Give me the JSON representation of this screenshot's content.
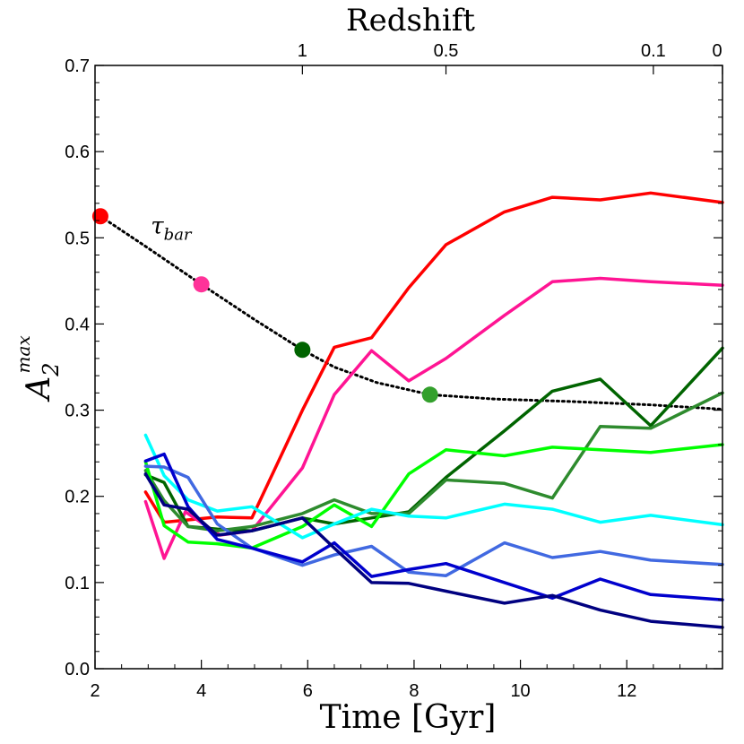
{
  "chart_data": {
    "type": "line",
    "title": "",
    "xlabel": "Time [Gyr]",
    "ylabel": "A",
    "ylabel_sub": "2",
    "ylabel_sup": "max",
    "top_axis_label": "Redshift",
    "xlim": [
      2.0,
      13.8
    ],
    "ylim": [
      0.0,
      0.7
    ],
    "x_ticks": [
      {
        "value": 2,
        "label": "2"
      },
      {
        "value": 4,
        "label": "4"
      },
      {
        "value": 6,
        "label": "6"
      },
      {
        "value": 8,
        "label": "8"
      },
      {
        "value": 10,
        "label": "10"
      },
      {
        "value": 12,
        "label": "12"
      }
    ],
    "y_ticks": [
      {
        "value": 0.0,
        "label": "0.0"
      },
      {
        "value": 0.1,
        "label": "0.1"
      },
      {
        "value": 0.2,
        "label": "0.2"
      },
      {
        "value": 0.3,
        "label": "0.3"
      },
      {
        "value": 0.4,
        "label": "0.4"
      },
      {
        "value": 0.5,
        "label": "0.5"
      },
      {
        "value": 0.6,
        "label": "0.6"
      },
      {
        "value": 0.7,
        "label": "0.7"
      }
    ],
    "top_ticks": [
      {
        "time": 5.9,
        "label": "1"
      },
      {
        "time": 8.6,
        "label": "0.5"
      },
      {
        "time": 12.5,
        "label": "0.1"
      },
      {
        "time": 13.8,
        "label": "0"
      }
    ],
    "grid": false,
    "annotation": {
      "text_main": "τ",
      "text_sub": "bar",
      "x": 3.05,
      "y": 0.505
    },
    "tau_bar_curve": {
      "name": "tau_bar",
      "style": "dotted",
      "color": "#000000",
      "x": [
        2.1,
        3.0,
        4.0,
        5.0,
        5.9,
        6.5,
        7.3,
        8.3,
        9.5,
        11.0,
        12.5,
        13.8
      ],
      "y": [
        0.525,
        0.488,
        0.446,
        0.405,
        0.37,
        0.35,
        0.332,
        0.318,
        0.313,
        0.31,
        0.306,
        0.301
      ]
    },
    "tau_bar_markers": [
      {
        "x": 2.1,
        "y": 0.525,
        "color": "#ff0000"
      },
      {
        "x": 4.0,
        "y": 0.446,
        "color": "#ff3399"
      },
      {
        "x": 5.9,
        "y": 0.37,
        "color": "#006400"
      },
      {
        "x": 8.3,
        "y": 0.318,
        "color": "#33a02c"
      }
    ],
    "series": [
      {
        "name": "red",
        "color": "#ff0000",
        "x": [
          2.95,
          3.3,
          4.3,
          4.95,
          5.9,
          6.5,
          7.2,
          7.9,
          8.6,
          9.7,
          10.6,
          11.5,
          12.45,
          13.8
        ],
        "y": [
          0.205,
          0.17,
          0.176,
          0.175,
          0.3,
          0.373,
          0.384,
          0.442,
          0.492,
          0.53,
          0.547,
          0.544,
          0.552,
          0.541
        ]
      },
      {
        "name": "pink",
        "color": "#ff1493",
        "x": [
          2.95,
          3.3,
          3.7,
          4.35,
          4.95,
          5.9,
          6.5,
          7.2,
          7.9,
          8.6,
          9.7,
          10.6,
          11.5,
          12.45,
          13.8
        ],
        "y": [
          0.194,
          0.128,
          0.182,
          0.155,
          0.16,
          0.233,
          0.318,
          0.369,
          0.334,
          0.36,
          0.41,
          0.449,
          0.453,
          0.449,
          0.445
        ]
      },
      {
        "name": "dark green",
        "color": "#006400",
        "x": [
          2.95,
          3.3,
          3.75,
          4.3,
          4.95,
          5.9,
          6.5,
          7.2,
          7.9,
          8.6,
          9.7,
          10.6,
          11.5,
          12.45,
          13.8
        ],
        "y": [
          0.225,
          0.216,
          0.165,
          0.162,
          0.16,
          0.175,
          0.168,
          0.175,
          0.182,
          0.222,
          0.276,
          0.322,
          0.336,
          0.282,
          0.372
        ]
      },
      {
        "name": "medium green",
        "color": "#2e8b2e",
        "x": [
          2.95,
          3.3,
          3.75,
          4.3,
          4.95,
          5.9,
          6.5,
          7.2,
          7.9,
          8.6,
          9.7,
          10.6,
          11.5,
          12.45,
          13.8
        ],
        "y": [
          0.23,
          0.195,
          0.165,
          0.16,
          0.165,
          0.18,
          0.196,
          0.18,
          0.18,
          0.219,
          0.215,
          0.198,
          0.281,
          0.279,
          0.32
        ]
      },
      {
        "name": "lime",
        "color": "#00ff00",
        "x": [
          2.95,
          3.3,
          3.75,
          4.3,
          4.95,
          5.9,
          6.5,
          7.2,
          7.9,
          8.6,
          9.7,
          10.6,
          11.5,
          12.45,
          13.8
        ],
        "y": [
          0.24,
          0.166,
          0.147,
          0.145,
          0.14,
          0.165,
          0.19,
          0.165,
          0.226,
          0.254,
          0.247,
          0.257,
          0.254,
          0.251,
          0.26
        ]
      },
      {
        "name": "cyan",
        "color": "#00ffff",
        "x": [
          2.95,
          3.3,
          3.75,
          4.3,
          4.95,
          5.9,
          6.5,
          7.2,
          7.9,
          8.6,
          9.7,
          10.6,
          11.5,
          12.45,
          13.8
        ],
        "y": [
          0.271,
          0.224,
          0.196,
          0.183,
          0.188,
          0.152,
          0.168,
          0.185,
          0.177,
          0.175,
          0.191,
          0.185,
          0.17,
          0.178,
          0.167
        ]
      },
      {
        "name": "light blue",
        "color": "#4169e1",
        "x": [
          2.95,
          3.3,
          3.75,
          4.3,
          4.95,
          5.9,
          6.5,
          7.2,
          7.9,
          8.6,
          9.7,
          10.6,
          11.5,
          12.45,
          13.8
        ],
        "y": [
          0.235,
          0.234,
          0.222,
          0.168,
          0.14,
          0.12,
          0.132,
          0.142,
          0.112,
          0.108,
          0.146,
          0.129,
          0.136,
          0.126,
          0.121
        ]
      },
      {
        "name": "blue",
        "color": "#0000cd",
        "x": [
          2.95,
          3.3,
          3.75,
          4.3,
          4.95,
          5.9,
          6.5,
          7.2,
          7.9,
          8.6,
          9.7,
          10.6,
          11.5,
          12.45,
          13.8
        ],
        "y": [
          0.241,
          0.249,
          0.188,
          0.15,
          0.14,
          0.124,
          0.146,
          0.107,
          0.115,
          0.122,
          0.1,
          0.082,
          0.104,
          0.086,
          0.08
        ]
      },
      {
        "name": "navy",
        "color": "#000080",
        "x": [
          2.95,
          3.3,
          3.75,
          4.3,
          4.95,
          5.9,
          6.5,
          7.2,
          7.9,
          8.6,
          9.7,
          10.6,
          11.5,
          12.45,
          13.8
        ],
        "y": [
          0.226,
          0.19,
          0.185,
          0.155,
          0.16,
          0.175,
          0.14,
          0.1,
          0.099,
          0.09,
          0.076,
          0.085,
          0.068,
          0.055,
          0.048
        ]
      }
    ]
  }
}
